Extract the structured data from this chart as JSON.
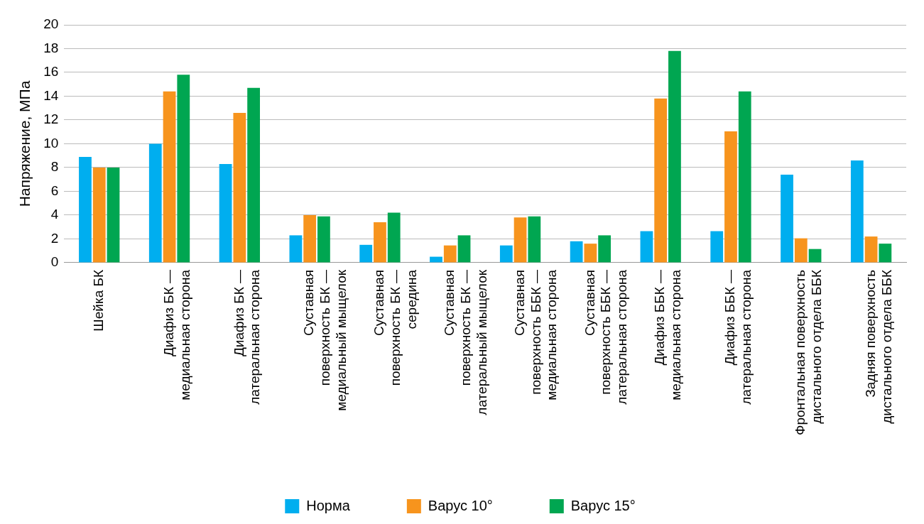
{
  "chart_data": {
    "type": "bar",
    "ylabel": "Напряжение, МПа",
    "categories": [
      "Шейка БК",
      "Диафиз БК —\nмедиальная сторона",
      "Диафиз БК —\nлатеральная сторона",
      "Суставная\nповерхность БК —\nмедиальный мыщелок",
      "Суставная\nповерхность БК —\nсередина",
      "Суставная\nповерхность БК —\nлатеральный мыщелок",
      "Суставная\nповерхность ББК —\nмедиальная сторона",
      "Суставная\nповерхность ББК —\nлатеральная сторона",
      "Диафиз ББК —\nмедиальная сторона",
      "Диафиз ББК —\nлатеральная сторона",
      "Фронтальная поверхность\nдистального отдела ББК",
      "Задняя поверхность\nдистального отдела ББК"
    ],
    "series": [
      {
        "name": "Норма",
        "color": "#00aeef",
        "values": [
          8.9,
          10.0,
          8.3,
          2.3,
          1.5,
          0.5,
          1.45,
          1.8,
          2.65,
          2.65,
          7.4,
          8.6
        ]
      },
      {
        "name": "Варус 10°",
        "color": "#f7941d",
        "values": [
          8.0,
          14.4,
          12.6,
          4.0,
          3.4,
          1.45,
          3.8,
          1.6,
          13.8,
          11.05,
          2.05,
          2.2
        ]
      },
      {
        "name": "Варус 15°",
        "color": "#00a651",
        "values": [
          8.0,
          15.8,
          14.7,
          3.9,
          4.2,
          2.3,
          3.9,
          2.3,
          17.8,
          14.4,
          1.15,
          1.6
        ]
      }
    ],
    "ylim": [
      0,
      20
    ],
    "yticks": [
      0,
      2,
      4,
      6,
      8,
      10,
      12,
      14,
      16,
      18,
      20
    ],
    "grid": "y",
    "legend": "bottom"
  }
}
